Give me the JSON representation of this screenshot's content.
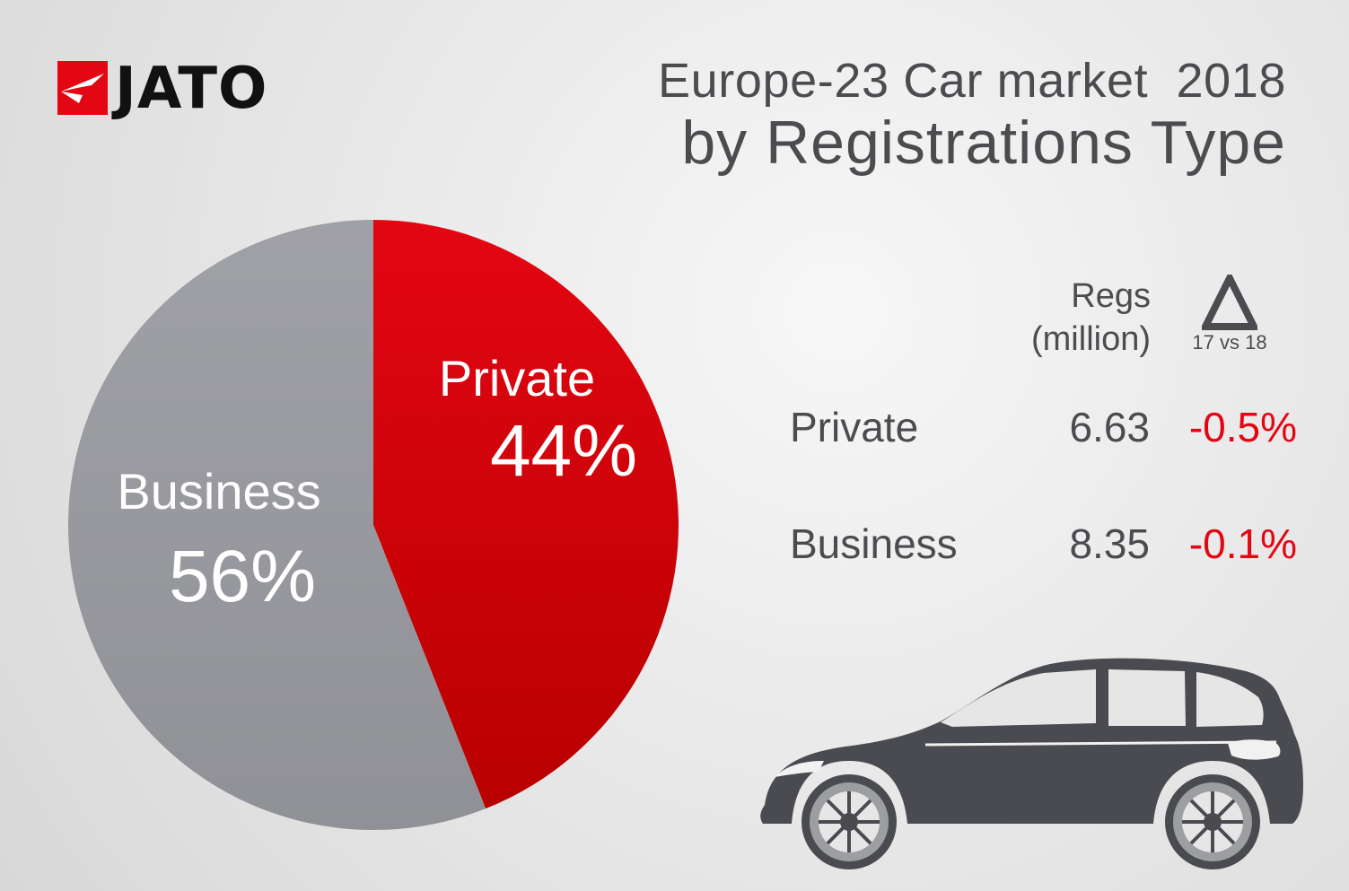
{
  "logo": {
    "text": "JATO",
    "mark_color": "#e30613"
  },
  "title": {
    "line1": "Europe-23 Car market  2018",
    "line2": "by Registrations Type"
  },
  "chart_data": {
    "type": "pie",
    "title": "Europe-23 Car market 2018 by Registrations Type",
    "series": [
      {
        "name": "Registrations Type",
        "slices": [
          {
            "label": "Private",
            "value": 44,
            "value_label": "44%",
            "color": "#e30613",
            "color_dark": "#b80000"
          },
          {
            "label": "Business",
            "value": 56,
            "value_label": "56%",
            "color": "#9a9ba0",
            "color_dark": "#8f9095"
          }
        ]
      }
    ],
    "legend": "none",
    "grid": false
  },
  "table": {
    "header_regs_line1": "Regs",
    "header_regs_line2": "(million)",
    "header_delta_symbol": "Δ",
    "header_delta_sub": "17 vs 18",
    "rows": [
      {
        "label": "Private",
        "value": "6.63",
        "change": "-0.5%"
      },
      {
        "label": "Business",
        "value": "8.35",
        "change": "-0.1%"
      }
    ]
  },
  "icons": {
    "car": "car-icon",
    "delta": "delta-icon",
    "logo": "jato-logo-icon"
  },
  "colors": {
    "text": "#4b4c50",
    "red": "#e30613",
    "car": "#4a4b50"
  }
}
